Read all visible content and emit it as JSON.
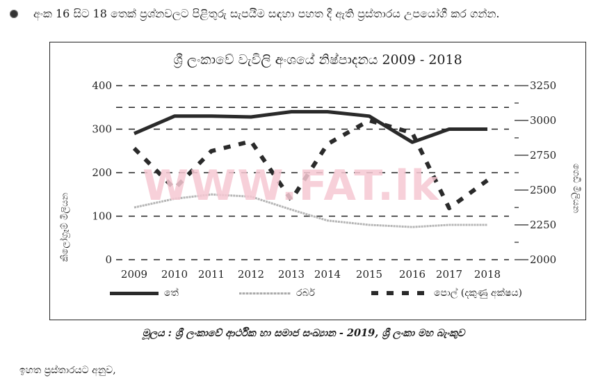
{
  "instruction": {
    "text": "අංක 16 සිට 18 තෙක් ප්‍රශ්නවලට පිළිතුරු සැපයීම සඳහා පහත දී ඇති ප්‍රස්තාරය උපයෝගී කර ගන්න."
  },
  "watermark": "WWW.FAT.lk",
  "chart_data": {
    "type": "line",
    "title": "ශ්‍රී ලංකාවේ වැවිලි අංශයේ නිෂ්පාදනය  2009 - 2018",
    "xlabel": "",
    "ylabel": "කිලෝග්‍රෑම් මිලියන",
    "ylabel_right": "ගෙඩි මිලියන",
    "x": [
      "2009",
      "2010",
      "2011",
      "2012",
      "2013",
      "2014",
      "2015",
      "2016",
      "2017",
      "2018"
    ],
    "ylim": [
      0,
      400
    ],
    "yticks": [
      "0",
      "100",
      "200",
      "300",
      "400"
    ],
    "ylim_right": [
      2000,
      3250
    ],
    "yticks_right": [
      "2000",
      "2250",
      "2500",
      "2750",
      "3000",
      "3250"
    ],
    "grid": true,
    "series": [
      {
        "name": "තේ",
        "axis": "left",
        "style": "solid-thick",
        "values": [
          290,
          330,
          330,
          328,
          340,
          340,
          330,
          270,
          300,
          300
        ]
      },
      {
        "name": "රබර්",
        "axis": "left",
        "style": "light-textured",
        "values": [
          120,
          140,
          150,
          145,
          115,
          90,
          80,
          75,
          80,
          80
        ]
      },
      {
        "name": "පොල් (දකුණු අක්ෂය)",
        "axis": "right",
        "style": "dashed-thick",
        "values": [
          2800,
          2510,
          2780,
          2850,
          2430,
          2830,
          3000,
          2910,
          2370,
          2570
        ]
      }
    ],
    "legend_position": "bottom"
  },
  "legend": {
    "tea": "තේ",
    "rubber": "රබර්",
    "coconut": "පොල් (දකුණු අක්ෂය)"
  },
  "source": "මූලය : ශ්‍රී ලංකාවේ ආර්ථික හා සමාජ සංඛ්‍යාන - 2019, ශ්‍රී ලංකා මහ බැංකුව",
  "followup": "ඉහත ප්‍රස්තාරයට අනුව,"
}
